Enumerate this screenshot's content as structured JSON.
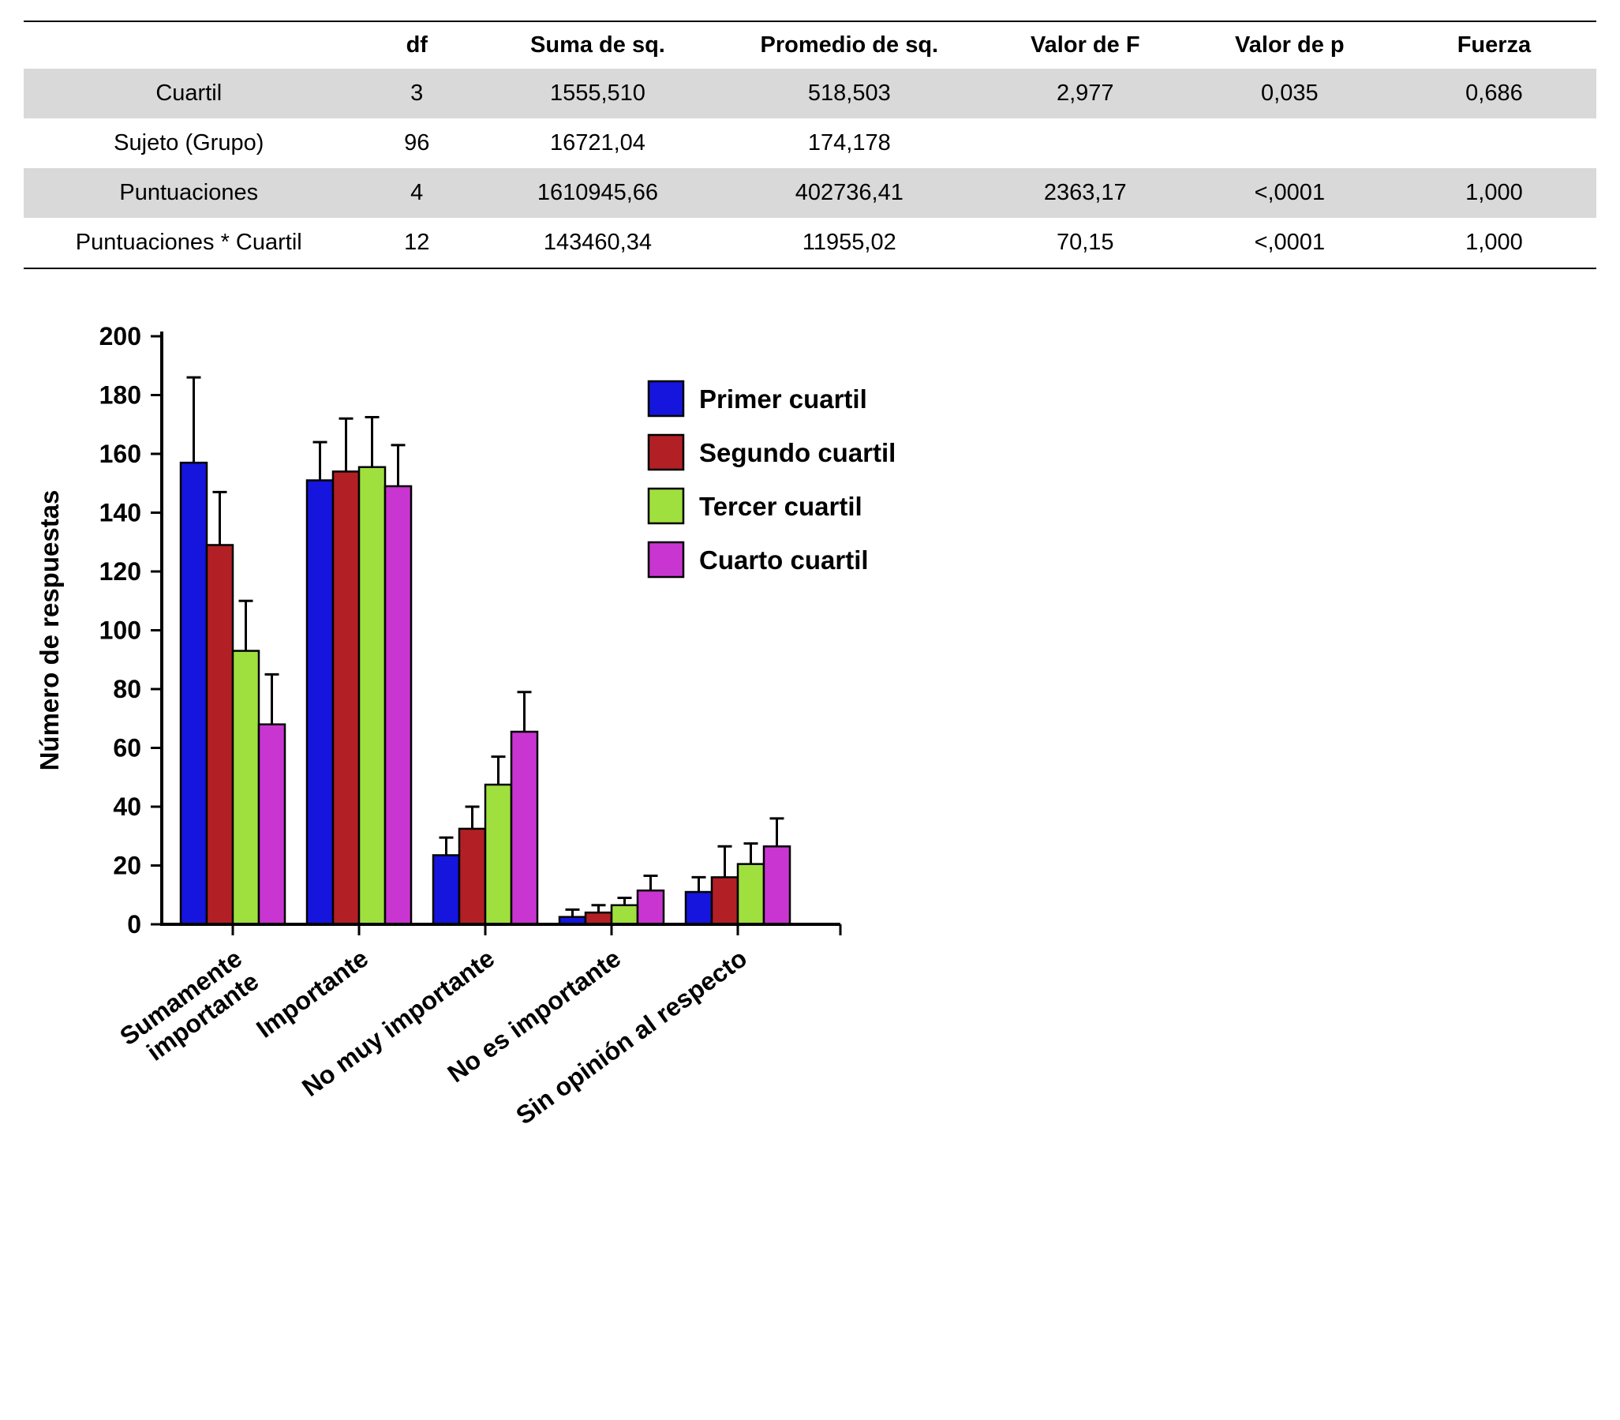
{
  "table": {
    "headers": [
      "",
      "df",
      "Suma de sq.",
      "Promedio de sq.",
      "Valor de F",
      "Valor de p",
      "Fuerza"
    ],
    "rows": [
      {
        "label": "Cuartil",
        "values": [
          "3",
          "1555,510",
          "518,503",
          "2,977",
          "0,035",
          "0,686"
        ]
      },
      {
        "label": "Sujeto (Grupo)",
        "values": [
          "96",
          "16721,04",
          "174,178",
          "",
          "",
          ""
        ]
      },
      {
        "label": "Puntuaciones",
        "values": [
          "4",
          "1610945,66",
          "402736,41",
          "2363,17",
          "<,0001",
          "1,000"
        ]
      },
      {
        "label": "Puntuaciones * Cuartil",
        "values": [
          "12",
          "143460,34",
          "11955,02",
          "70,15",
          "<,0001",
          "1,000"
        ]
      }
    ]
  },
  "chart_data": {
    "type": "bar",
    "title": "",
    "xlabel": "",
    "ylabel": "Número de respuestas",
    "ylim": [
      0,
      200
    ],
    "ytick_step": 20,
    "grid": false,
    "legend_position": "upper right",
    "categories": [
      "Sumamente\nimportante",
      "Importante",
      "No muy importante",
      "No es importante",
      "Sin opinión al respecto"
    ],
    "series": [
      {
        "name": "Primer cuartil",
        "color": "#1515dd",
        "values": [
          157,
          151,
          23.5,
          2.5,
          11
        ],
        "errors": [
          29,
          13,
          6,
          2.5,
          5
        ]
      },
      {
        "name": "Segundo cuartil",
        "color": "#b22025",
        "values": [
          129,
          154,
          32.5,
          4,
          16
        ],
        "errors": [
          18,
          18,
          7.5,
          2.5,
          10.5
        ]
      },
      {
        "name": "Tercer cuartil",
        "color": "#9fe03f",
        "values": [
          93,
          155.5,
          47.5,
          6.5,
          20.5
        ],
        "errors": [
          17,
          17,
          9.5,
          2.5,
          7
        ]
      },
      {
        "name": "Cuarto cuartil",
        "color": "#c935d1",
        "values": [
          68,
          149,
          65.5,
          11.5,
          26.5
        ],
        "errors": [
          17,
          14,
          13.5,
          5,
          9.5
        ]
      }
    ]
  }
}
